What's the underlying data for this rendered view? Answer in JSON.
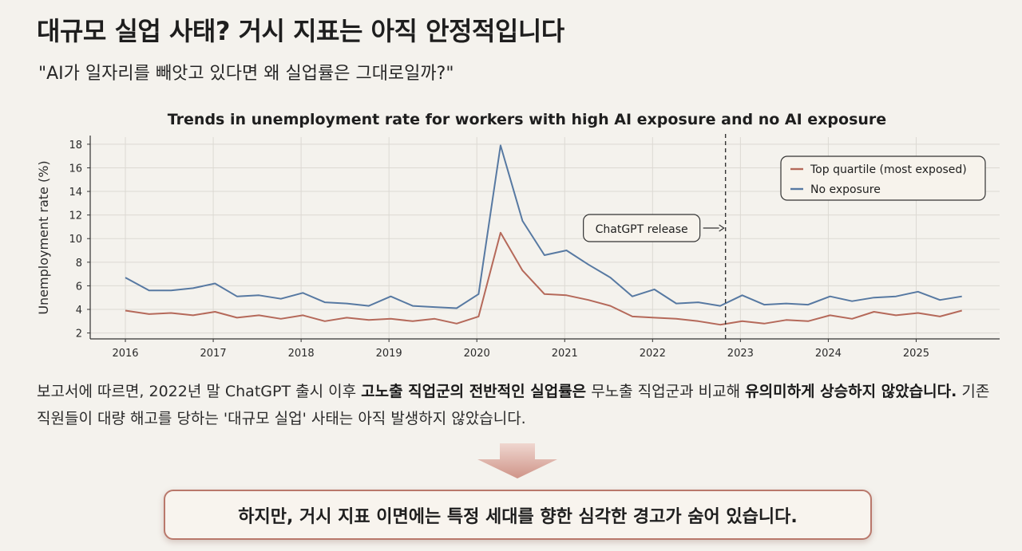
{
  "page": {
    "title": "대규모 실업 사태? 거시 지표는 아직 안정적입니다",
    "subtitle": "\"AI가 일자리를 빼앗고 있다면 왜 실업률은 그대로일까?\"",
    "body": {
      "part1": "보고서에 따르면, 2022년 말 ChatGPT 출시 이후 ",
      "bold1": "고노출 직업군의 전반적인 실업률은",
      "part2": " 무노출 직업군과 비교해 ",
      "bold2": "유의미하게 상승하지 않았습니다.",
      "part3": "  기존 직원들이 대량 해고를 당하는 '대규모 실업' 사태는 아직 발생하지 않았습니다."
    },
    "callout": "하지만, 거시 지표 이면에는 특정 세대를 향한 심각한 경고가 숨어 있습니다.",
    "colors": {
      "background": "#f4f2ed",
      "callout_border": "#b9786b",
      "arrow": "#d9a99f"
    }
  },
  "chart_data": {
    "type": "line",
    "title": "Trends in unemployment rate for workers with high AI exposure and no AI exposure",
    "xlabel": "",
    "ylabel": "Unemployment rate (%)",
    "xlim": [
      2015.6,
      2025.95
    ],
    "ylim": [
      1.5,
      18.6
    ],
    "yticks": [
      2,
      4,
      6,
      8,
      10,
      12,
      14,
      16,
      18
    ],
    "xticks": [
      2016,
      2017,
      2018,
      2019,
      2020,
      2021,
      2022,
      2023,
      2024,
      2025
    ],
    "grid": true,
    "legend_position": "top-right",
    "x": [
      2016.0,
      2016.27,
      2016.52,
      2016.77,
      2017.02,
      2017.27,
      2017.52,
      2017.77,
      2018.02,
      2018.27,
      2018.52,
      2018.77,
      2019.02,
      2019.27,
      2019.52,
      2019.77,
      2020.02,
      2020.27,
      2020.52,
      2020.77,
      2021.02,
      2021.27,
      2021.52,
      2021.77,
      2022.02,
      2022.27,
      2022.52,
      2022.77,
      2023.02,
      2023.27,
      2023.52,
      2023.77,
      2024.02,
      2024.27,
      2024.52,
      2024.77,
      2025.02,
      2025.27,
      2025.52
    ],
    "series": [
      {
        "name": "Top quartile (most exposed)",
        "color": "#b5695a",
        "values": [
          3.9,
          3.6,
          3.7,
          3.5,
          3.8,
          3.3,
          3.5,
          3.2,
          3.5,
          3.0,
          3.3,
          3.1,
          3.2,
          3.0,
          3.2,
          2.8,
          3.4,
          10.5,
          7.3,
          5.3,
          5.2,
          4.8,
          4.3,
          3.4,
          3.3,
          3.2,
          3.0,
          2.7,
          3.0,
          2.8,
          3.1,
          3.0,
          3.5,
          3.2,
          3.8,
          3.5,
          3.7,
          3.4,
          3.9
        ]
      },
      {
        "name": "No exposure",
        "color": "#5779a2",
        "values": [
          6.7,
          5.6,
          5.6,
          5.8,
          6.2,
          5.1,
          5.2,
          4.9,
          5.4,
          4.6,
          4.5,
          4.3,
          5.1,
          4.3,
          4.2,
          4.1,
          5.3,
          17.9,
          11.5,
          8.6,
          9.0,
          7.8,
          6.7,
          5.1,
          5.7,
          4.5,
          4.6,
          4.3,
          5.2,
          4.4,
          4.5,
          4.4,
          5.1,
          4.7,
          5.0,
          5.1,
          5.5,
          4.8,
          5.1
        ]
      }
    ],
    "annotations": [
      {
        "label": "ChatGPT release",
        "x": 2022.83
      }
    ]
  }
}
